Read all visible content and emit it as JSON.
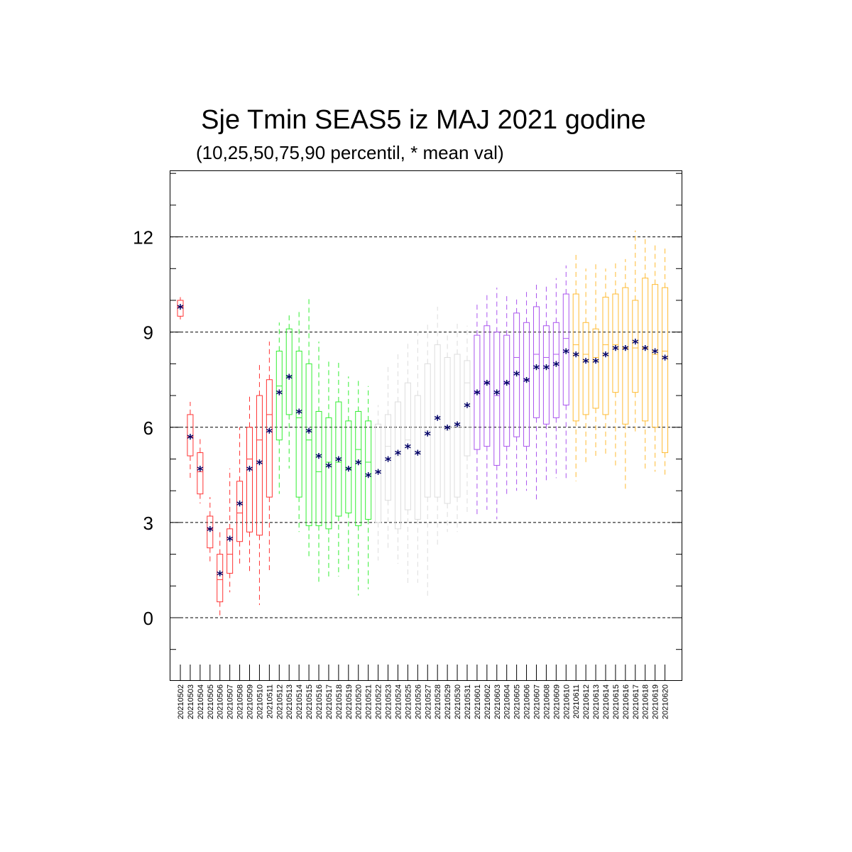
{
  "chart_data": {
    "type": "box",
    "title": "Sje Tmin SEAS5 iz MAJ 2021 godine",
    "subtitle": "(10,25,50,75,90 percentil, * mean val)",
    "xlabel": "",
    "ylabel": "",
    "ylim": [
      -2,
      14
    ],
    "yticks": [
      "0",
      "3",
      "6",
      "9",
      "12"
    ],
    "grid": "horizontal dashed at 0, 3, 6, 9, 12",
    "legend": "none",
    "mean_marker": "*",
    "mean_color": "#000066",
    "colors": {
      "red": "#ff3333",
      "green": "#33ee33",
      "gray": "#dddddd",
      "purple": "#aa55ee",
      "orange": "#ffbb33"
    },
    "categories": [
      "20210502",
      "20210503",
      "20210504",
      "20210505",
      "20210506",
      "20210507",
      "20210508",
      "20210509",
      "20210510",
      "20210511",
      "20210512",
      "20210513",
      "20210514",
      "20210515",
      "20210516",
      "20210517",
      "20210518",
      "20210519",
      "20210520",
      "20210521",
      "20210522",
      "20210523",
      "20210524",
      "20210525",
      "20210526",
      "20210527",
      "20210528",
      "20210529",
      "20210530",
      "20210531",
      "20210601",
      "20210602",
      "20210603",
      "20210604",
      "20210605",
      "20210606",
      "20210607",
      "20210608",
      "20210609",
      "20210610",
      "20210611",
      "20210612",
      "20210613",
      "20210614",
      "20210615",
      "20210616",
      "20210617",
      "20210618",
      "20210619",
      "20210620"
    ],
    "series": [
      {
        "color": "red",
        "p10": [
          9.4,
          4.4,
          3.6,
          1.7,
          0.0,
          0.8,
          1.6,
          1.4,
          0.4,
          1.5
        ],
        "p25": [
          9.5,
          5.1,
          3.9,
          2.2,
          0.5,
          1.4,
          2.4,
          2.7,
          2.6,
          3.8
        ],
        "p50": [
          9.8,
          5.7,
          4.6,
          2.8,
          1.2,
          2.0,
          3.3,
          5.0,
          5.6,
          6.4
        ],
        "p75": [
          10.0,
          6.4,
          5.2,
          3.2,
          2.0,
          2.8,
          4.3,
          6.0,
          7.0,
          7.5
        ],
        "p90": [
          10.1,
          6.8,
          5.7,
          3.8,
          2.8,
          4.7,
          6.0,
          7.0,
          8.0,
          8.7
        ],
        "mean": [
          9.8,
          5.7,
          4.7,
          2.8,
          1.4,
          2.5,
          3.6,
          4.7,
          4.9,
          5.9
        ]
      },
      {
        "color": "green",
        "p10": [
          3.9,
          4.7,
          2.7,
          1.9,
          1.1,
          1.3,
          1.3,
          1.5,
          0.7,
          0.9
        ],
        "p25": [
          5.6,
          6.4,
          3.8,
          2.9,
          2.9,
          2.8,
          3.2,
          3.3,
          2.9,
          3.1
        ],
        "p50": [
          7.3,
          7.6,
          6.3,
          5.6,
          4.6,
          4.9,
          4.9,
          4.7,
          5.3,
          4.9
        ],
        "p75": [
          8.4,
          9.1,
          8.4,
          8.0,
          6.5,
          6.3,
          6.8,
          6.2,
          6.5,
          6.2
        ],
        "p90": [
          9.3,
          9.6,
          9.7,
          10.1,
          8.7,
          8.1,
          8.1,
          7.6,
          7.5,
          7.3
        ],
        "mean": [
          7.1,
          7.6,
          6.5,
          5.9,
          5.1,
          4.8,
          5.0,
          4.7,
          4.9,
          4.5
        ]
      },
      {
        "color": "gray",
        "p10": [
          1.8,
          2.1,
          1.7,
          1.0,
          1.1,
          0.6,
          2.3,
          2.7,
          2.7,
          3.3
        ],
        "p25": [
          3.0,
          3.7,
          2.8,
          3.4,
          3.1,
          3.8,
          3.8,
          3.6,
          3.8,
          5.1
        ],
        "p50": [
          4.6,
          5.4,
          5.1,
          5.6,
          5.2,
          5.9,
          6.3,
          5.9,
          6.1,
          7.4
        ],
        "p75": [
          6.1,
          6.4,
          6.8,
          7.4,
          7.0,
          8.0,
          8.6,
          8.2,
          8.3,
          8.1
        ],
        "p90": [
          6.7,
          7.9,
          8.3,
          8.7,
          9.0,
          9.3,
          9.8,
          9.0,
          9.3,
          9.2
        ],
        "mean": [
          4.6,
          5.0,
          5.2,
          5.4,
          5.2,
          5.8,
          6.3,
          6.0,
          6.1,
          6.7
        ]
      },
      {
        "color": "purple",
        "p10": [
          3.2,
          3.4,
          3.1,
          3.8,
          4.0,
          4.0,
          3.7,
          4.3,
          4.4,
          4.4
        ],
        "p25": [
          5.3,
          5.4,
          4.8,
          5.4,
          5.7,
          5.4,
          6.3,
          6.1,
          6.3,
          6.7
        ],
        "p50": [
          7.1,
          7.4,
          7.0,
          7.4,
          8.2,
          7.5,
          8.3,
          8.2,
          8.3,
          8.8
        ],
        "p75": [
          8.9,
          9.2,
          9.0,
          8.9,
          9.6,
          9.3,
          9.8,
          9.2,
          9.3,
          10.2
        ],
        "p90": [
          9.9,
          10.2,
          10.4,
          10.2,
          10.1,
          10.3,
          10.5,
          10.5,
          10.7,
          11.1
        ],
        "mean": [
          7.1,
          7.4,
          7.1,
          7.4,
          7.7,
          7.5,
          7.9,
          7.9,
          8.0,
          8.4
        ]
      },
      {
        "color": "orange",
        "p10": [
          4.3,
          4.8,
          5.0,
          5.1,
          4.8,
          4.0,
          5.8,
          4.6,
          4.6,
          4.5
        ],
        "p25": [
          6.2,
          6.4,
          6.6,
          6.4,
          7.1,
          6.1,
          7.1,
          6.2,
          6.0,
          5.2
        ],
        "p50": [
          8.6,
          8.3,
          8.2,
          8.6,
          8.6,
          8.5,
          8.5,
          8.5,
          8.3,
          8.4
        ],
        "p75": [
          10.2,
          9.3,
          9.1,
          10.1,
          10.2,
          10.4,
          10.0,
          10.7,
          10.5,
          10.4
        ],
        "p90": [
          11.5,
          11.0,
          11.2,
          11.0,
          11.2,
          11.3,
          12.2,
          12.0,
          11.8,
          11.7
        ],
        "mean": [
          8.3,
          8.1,
          8.1,
          8.3,
          8.5,
          8.5,
          8.7,
          8.5,
          8.4,
          8.2
        ]
      }
    ]
  }
}
